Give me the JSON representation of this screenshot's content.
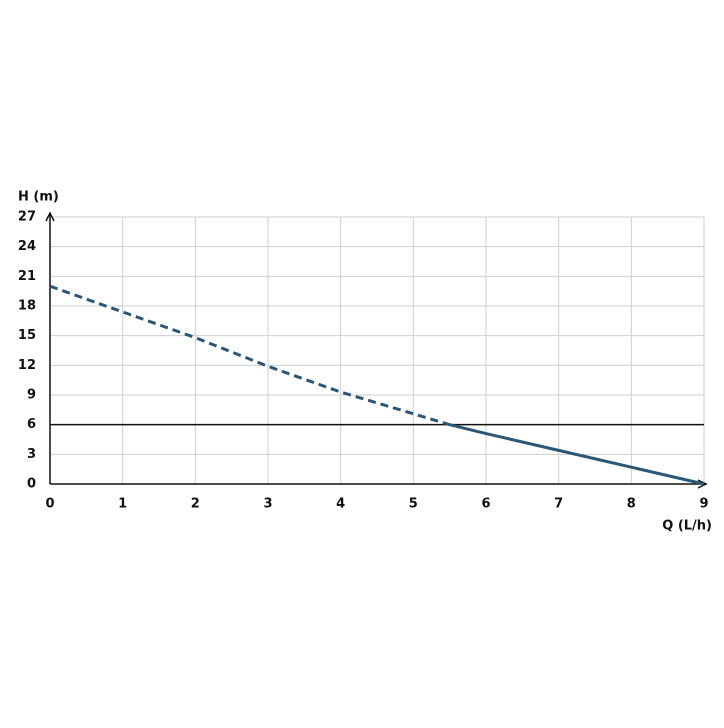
{
  "chart_data": {
    "type": "line",
    "ylabel": "H (m)",
    "xlabel": "Q (L/h)",
    "xlim": [
      0,
      9
    ],
    "xticks": [
      0,
      1,
      2,
      3,
      4,
      5,
      6,
      7,
      8,
      9
    ],
    "ylim": [
      0,
      27
    ],
    "yticks": [
      0,
      3,
      6,
      9,
      12,
      15,
      18,
      21,
      24,
      27
    ],
    "grid": true,
    "hline": {
      "value": 6,
      "color": "#111111"
    },
    "series": [
      {
        "color": "#2b5676",
        "dashed": true,
        "x": [
          0,
          1,
          2,
          3,
          4,
          5,
          5.5
        ],
        "values": [
          20,
          17.4,
          14.8,
          11.9,
          9.3,
          7.1,
          6
        ]
      },
      {
        "color": "#2b5676",
        "dashed": false,
        "x": [
          5.5,
          6,
          7,
          8,
          9
        ],
        "values": [
          6,
          5.1,
          3.4,
          1.7,
          0
        ]
      }
    ]
  }
}
